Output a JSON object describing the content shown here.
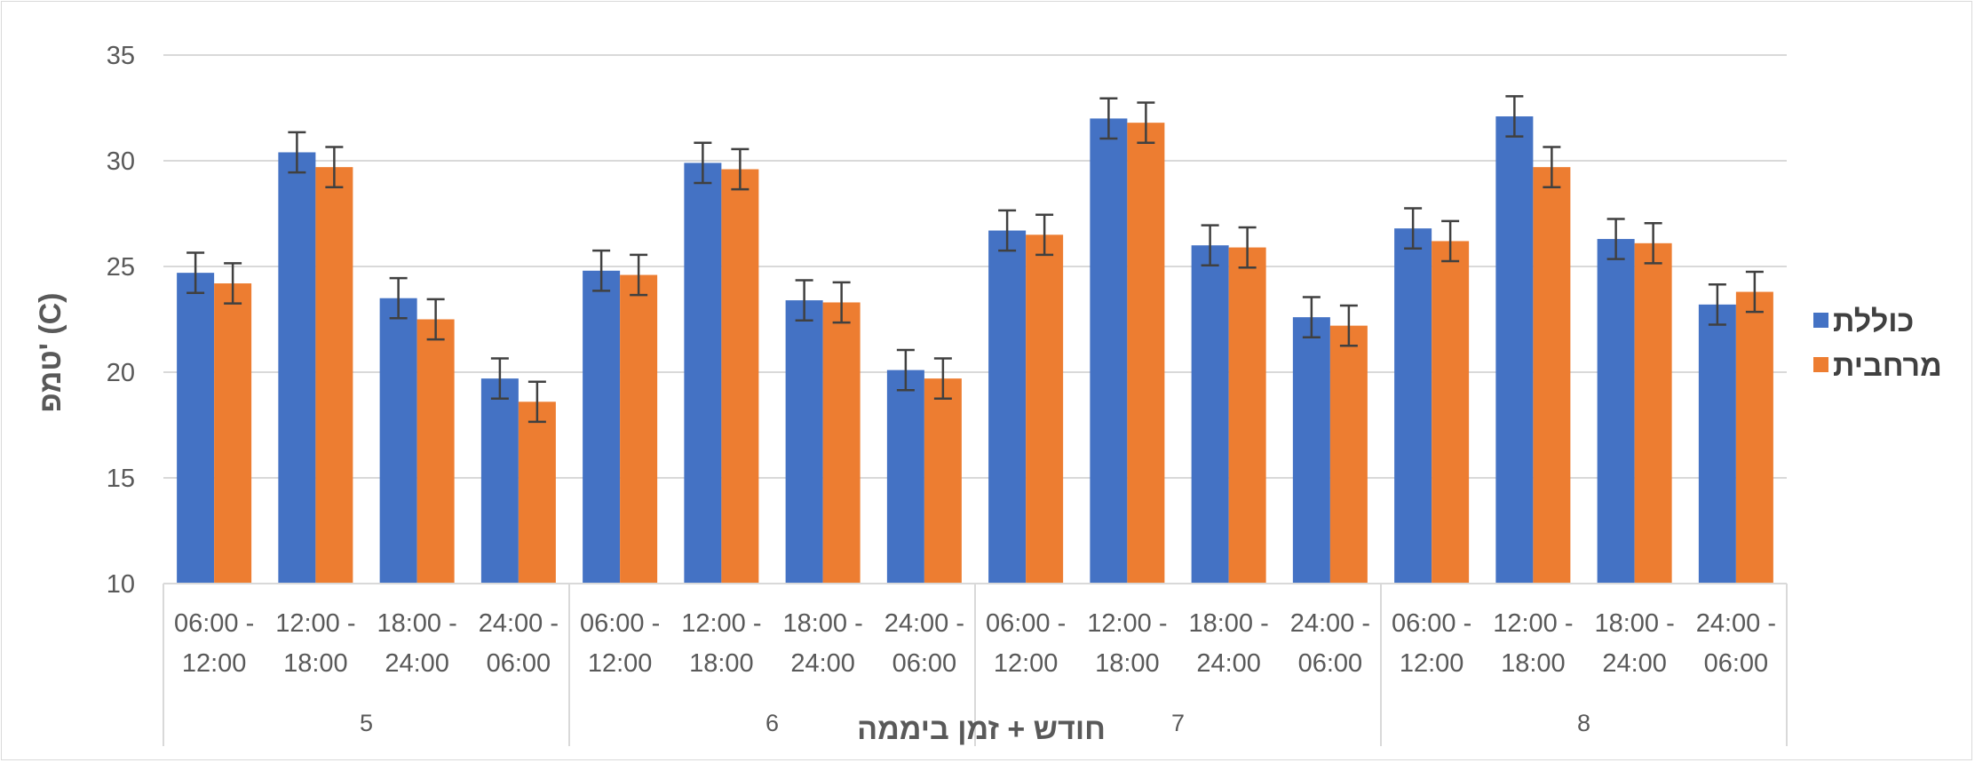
{
  "chart_data": {
    "type": "bar",
    "ylabel": "טמפ' (C)",
    "xlabel": "חודש + זמן ביממה",
    "ylim": [
      10,
      35
    ],
    "yticks": [
      10,
      15,
      20,
      25,
      30,
      35
    ],
    "grid": true,
    "legend_position": "right",
    "groups": [
      "5",
      "6",
      "7",
      "8"
    ],
    "time_slots": [
      [
        "06:00 -",
        "12:00"
      ],
      [
        "12:00 -",
        "18:00"
      ],
      [
        "18:00 -",
        "24:00"
      ],
      [
        "24:00 -",
        "06:00"
      ]
    ],
    "series": [
      {
        "name": "כוללת",
        "color": "#4472C4",
        "values": [
          24.7,
          30.4,
          23.5,
          19.7,
          24.8,
          29.9,
          23.4,
          20.1,
          26.7,
          32.0,
          26.0,
          22.6,
          26.8,
          32.1,
          26.3,
          23.2
        ],
        "errors": [
          0.95,
          0.95,
          0.95,
          0.95,
          0.95,
          0.95,
          0.95,
          0.95,
          0.95,
          0.95,
          0.95,
          0.95,
          0.95,
          0.95,
          0.95,
          0.95
        ]
      },
      {
        "name": "מרחבית",
        "color": "#ED7D31",
        "values": [
          24.2,
          29.7,
          22.5,
          18.6,
          24.6,
          29.6,
          23.3,
          19.7,
          26.5,
          31.8,
          25.9,
          22.2,
          26.2,
          29.7,
          26.1,
          23.8
        ],
        "errors": [
          0.95,
          0.95,
          0.95,
          0.95,
          0.95,
          0.95,
          0.95,
          0.95,
          0.95,
          0.95,
          0.95,
          0.95,
          0.95,
          0.95,
          0.95,
          0.95
        ]
      }
    ]
  }
}
